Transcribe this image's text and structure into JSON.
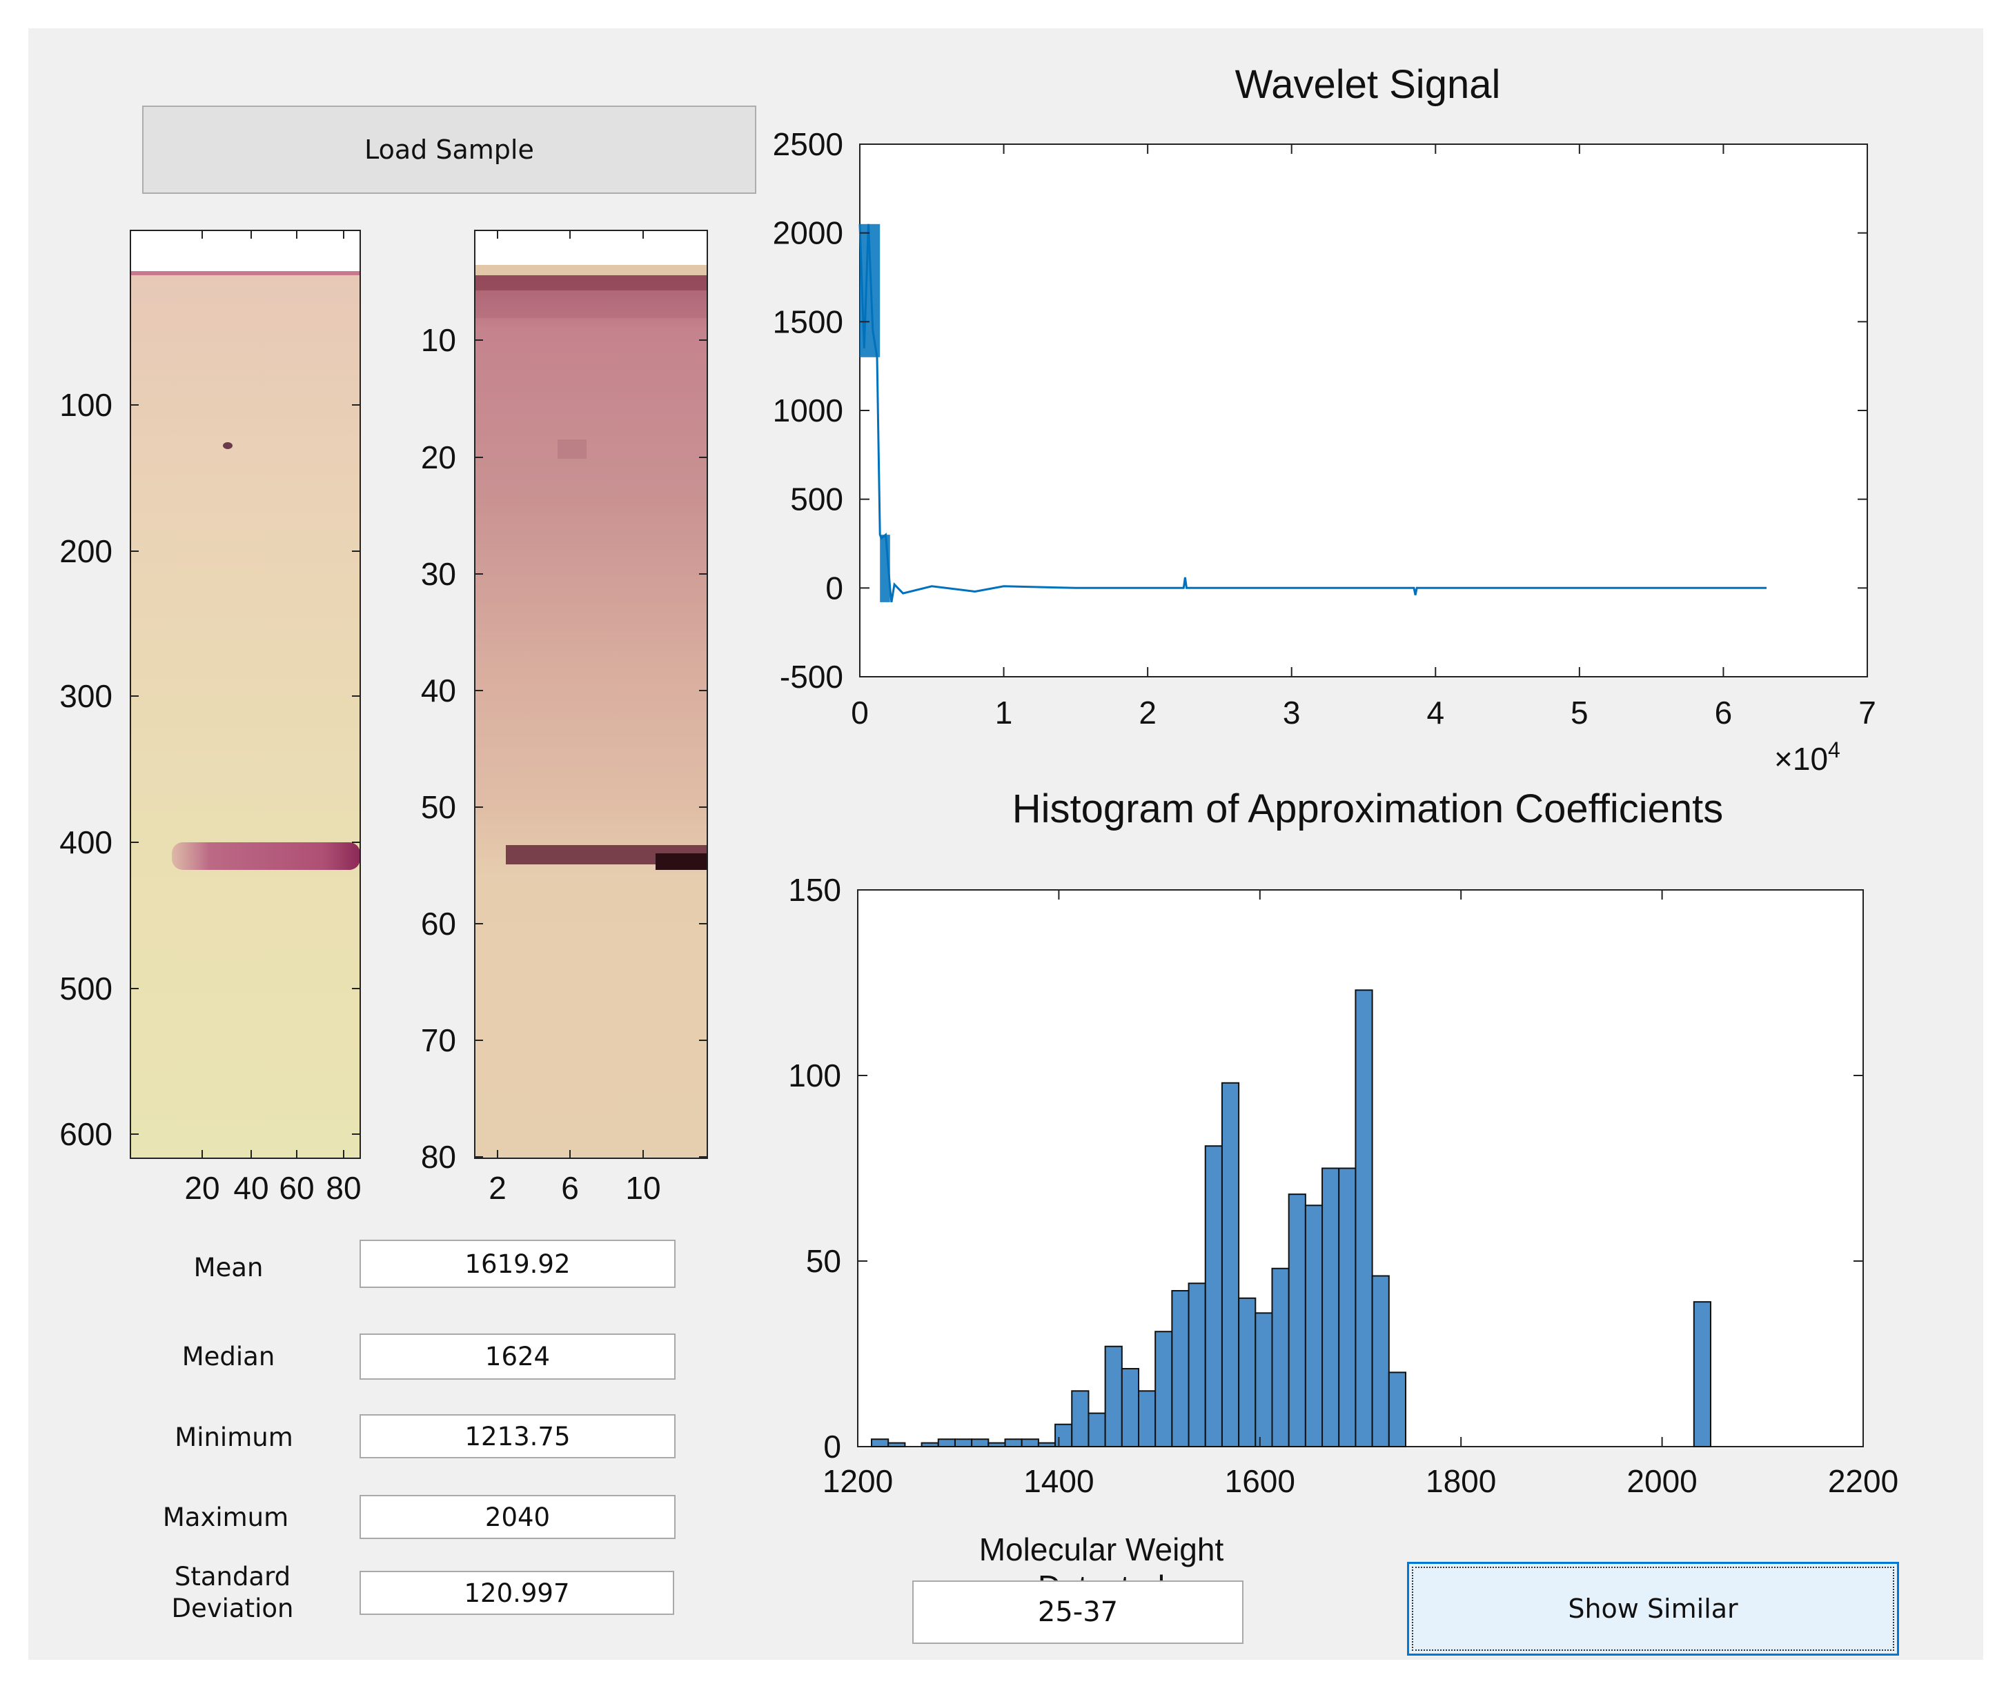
{
  "load_button": {
    "label": "Load Sample"
  },
  "image1": {
    "y_ticks": [
      "100",
      "200",
      "300",
      "400",
      "500",
      "600"
    ],
    "x_ticks": [
      "20",
      "40",
      "60",
      "80"
    ]
  },
  "image2": {
    "y_ticks": [
      "10",
      "20",
      "30",
      "40",
      "50",
      "60",
      "70",
      "80"
    ],
    "x_ticks": [
      "2",
      "6",
      "10"
    ]
  },
  "stats": [
    {
      "label": "Mean",
      "value": "1619.92"
    },
    {
      "label": "Median",
      "value": "1624"
    },
    {
      "label": "Minimum",
      "value": "1213.75"
    },
    {
      "label": "Maximum",
      "value": "2040"
    },
    {
      "label": "Standard\nDeviation",
      "value": "120.997"
    }
  ],
  "molecular_weight": {
    "label": "Molecular Weight\nDetected",
    "value": "25-37"
  },
  "show_similar_button": {
    "label": "Show Similar"
  },
  "colors": {
    "line": "#0072bd",
    "bar_fill": "#4f8fc9",
    "bar_edge": "#111111"
  },
  "chart_data": [
    {
      "type": "line",
      "title": "Wavelet Signal",
      "xlim": [
        0,
        70000
      ],
      "ylim": [
        -500,
        2500
      ],
      "x_ticks": [
        "0",
        "1",
        "2",
        "3",
        "4",
        "5",
        "6",
        "7"
      ],
      "y_ticks": [
        "2500",
        "2000",
        "1500",
        "1000",
        "500",
        "0",
        "-500"
      ],
      "x_exponent_label": "×10",
      "x_exponent": "4",
      "series": [
        {
          "color": "#0072bd",
          "x": [
            0,
            300,
            600,
            900,
            1200,
            1400,
            1500,
            1800,
            2100,
            2200,
            2400,
            3000,
            5000,
            8000,
            10000,
            15000,
            20000,
            22500,
            22600,
            22700,
            30000,
            38500,
            38600,
            38700,
            45000,
            50000,
            55000,
            60000,
            63000
          ],
          "y": [
            2050,
            1350,
            2050,
            1450,
            1300,
            300,
            280,
            300,
            0,
            -80,
            20,
            -30,
            10,
            -20,
            10,
            0,
            0,
            0,
            60,
            0,
            0,
            0,
            -40,
            0,
            0,
            0,
            0,
            0,
            0
          ]
        }
      ]
    },
    {
      "type": "bar",
      "title": "Histogram of Approximation Coefficients",
      "xlim": [
        1200,
        2200
      ],
      "ylim": [
        0,
        150
      ],
      "x_ticks": [
        "1200",
        "1400",
        "1600",
        "1800",
        "2000",
        "2200"
      ],
      "y_ticks": [
        "150",
        "100",
        "50",
        "0"
      ],
      "bin_width": 16.6,
      "bin_starts": [
        1213.75,
        1230.35,
        1246.95,
        1263.55,
        1280.15,
        1296.75,
        1313.35,
        1329.95,
        1346.55,
        1363.15,
        1379.75,
        1396.35,
        1412.95,
        1429.55,
        1446.15,
        1462.75,
        1479.35,
        1495.95,
        1512.55,
        1529.15,
        1545.75,
        1562.35,
        1578.95,
        1595.55,
        1612.15,
        1628.75,
        1645.35,
        1661.95,
        1678.55,
        1695.15,
        1711.75,
        1728.35,
        2031.7
      ],
      "values": [
        2,
        1,
        0,
        1,
        2,
        2,
        2,
        1,
        2,
        2,
        1,
        6,
        15,
        9,
        27,
        21,
        15,
        31,
        42,
        44,
        81,
        98,
        40,
        36,
        48,
        68,
        65,
        75,
        75,
        123,
        46,
        20,
        39
      ]
    }
  ]
}
